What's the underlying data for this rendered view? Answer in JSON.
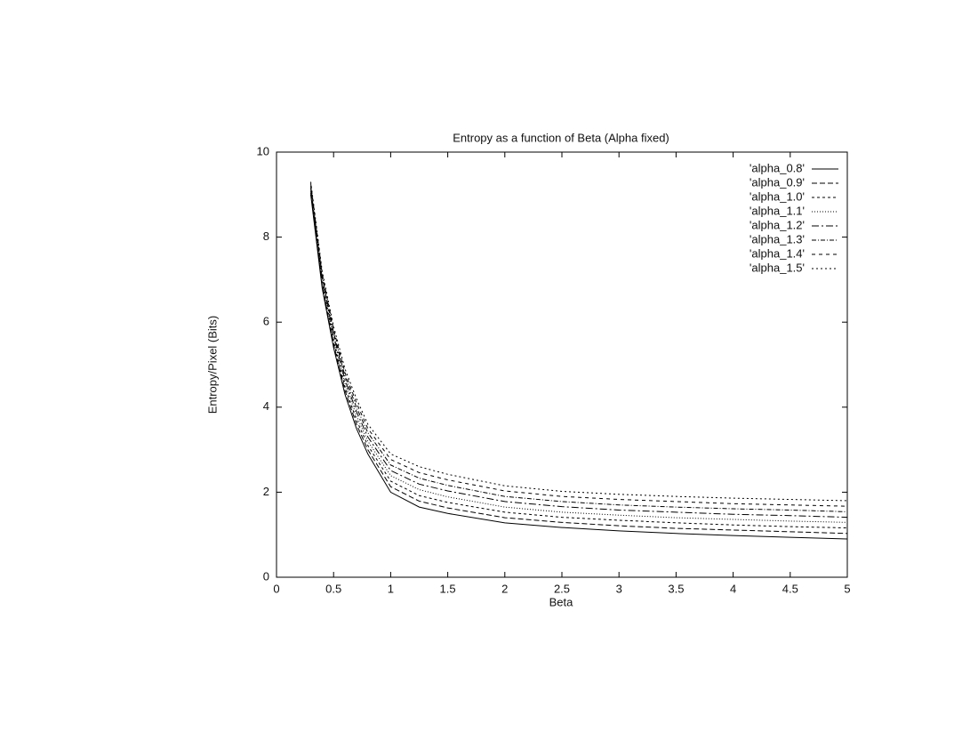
{
  "chart_data": {
    "type": "line",
    "title": "Entropy as a function of Beta (Alpha fixed)",
    "x_label": "Beta",
    "y_label": "Entropy/Pixel (Bits)",
    "x": [
      0.3,
      0.4,
      0.5,
      0.6,
      0.7,
      0.8,
      1,
      1.25,
      1.5,
      2,
      2.5,
      3,
      3.5,
      4,
      4.5,
      5
    ],
    "series": [
      {
        "name": "'alpha_0.8'",
        "color": "#000000",
        "dash": "none",
        "values": [
          9.0,
          6.8,
          5.4,
          4.3,
          3.5,
          2.9,
          2.0,
          1.65,
          1.5,
          1.28,
          1.17,
          1.09,
          1.03,
          0.98,
          0.94,
          0.9
        ]
      },
      {
        "name": "'alpha_0.9'",
        "color": "#000000",
        "dash": "6 3",
        "values": [
          9.04,
          6.86,
          5.47,
          4.39,
          3.6,
          3.0,
          2.13,
          1.79,
          1.63,
          1.4,
          1.29,
          1.21,
          1.15,
          1.11,
          1.07,
          1.03
        ]
      },
      {
        "name": "'alpha_1.0'",
        "color": "#000000",
        "dash": "3 3",
        "values": [
          9.09,
          6.91,
          5.54,
          4.47,
          3.7,
          3.1,
          2.26,
          1.92,
          1.76,
          1.53,
          1.41,
          1.34,
          1.28,
          1.23,
          1.19,
          1.16
        ]
      },
      {
        "name": "'alpha_1.1'",
        "color": "#000000",
        "dash": "1 2",
        "values": [
          9.13,
          6.97,
          5.61,
          4.56,
          3.8,
          3.2,
          2.39,
          2.06,
          1.89,
          1.65,
          1.53,
          1.46,
          1.4,
          1.36,
          1.32,
          1.29
        ]
      },
      {
        "name": "'alpha_1.2'",
        "color": "#000000",
        "dash": "8 3 2 3",
        "values": [
          9.17,
          7.03,
          5.69,
          4.64,
          3.9,
          3.3,
          2.51,
          2.19,
          2.03,
          1.78,
          1.66,
          1.58,
          1.53,
          1.48,
          1.45,
          1.41
        ]
      },
      {
        "name": "'alpha_1.3'",
        "color": "#000000",
        "dash": "5 2 1 2",
        "values": [
          9.21,
          7.09,
          5.76,
          4.73,
          4.0,
          3.4,
          2.64,
          2.33,
          2.16,
          1.9,
          1.78,
          1.7,
          1.65,
          1.61,
          1.58,
          1.54
        ]
      },
      {
        "name": "'alpha_1.4'",
        "color": "#000000",
        "dash": "4 4",
        "values": [
          9.26,
          7.14,
          5.83,
          4.81,
          4.1,
          3.5,
          2.77,
          2.46,
          2.29,
          2.03,
          1.9,
          1.83,
          1.78,
          1.73,
          1.7,
          1.67
        ]
      },
      {
        "name": "'alpha_1.5'",
        "color": "#000000",
        "dash": "2 3",
        "values": [
          9.3,
          7.2,
          5.9,
          4.9,
          4.2,
          3.6,
          2.9,
          2.6,
          2.42,
          2.15,
          2.02,
          1.95,
          1.9,
          1.86,
          1.83,
          1.8
        ]
      }
    ],
    "xlim": [
      0,
      5
    ],
    "ylim": [
      0,
      10
    ],
    "xticks": [
      0,
      0.5,
      1,
      1.5,
      2,
      2.5,
      3,
      3.5,
      4,
      4.5,
      5
    ],
    "yticks": [
      0,
      2,
      4,
      6,
      8,
      10
    ],
    "grid": false,
    "legend": "top-right"
  }
}
